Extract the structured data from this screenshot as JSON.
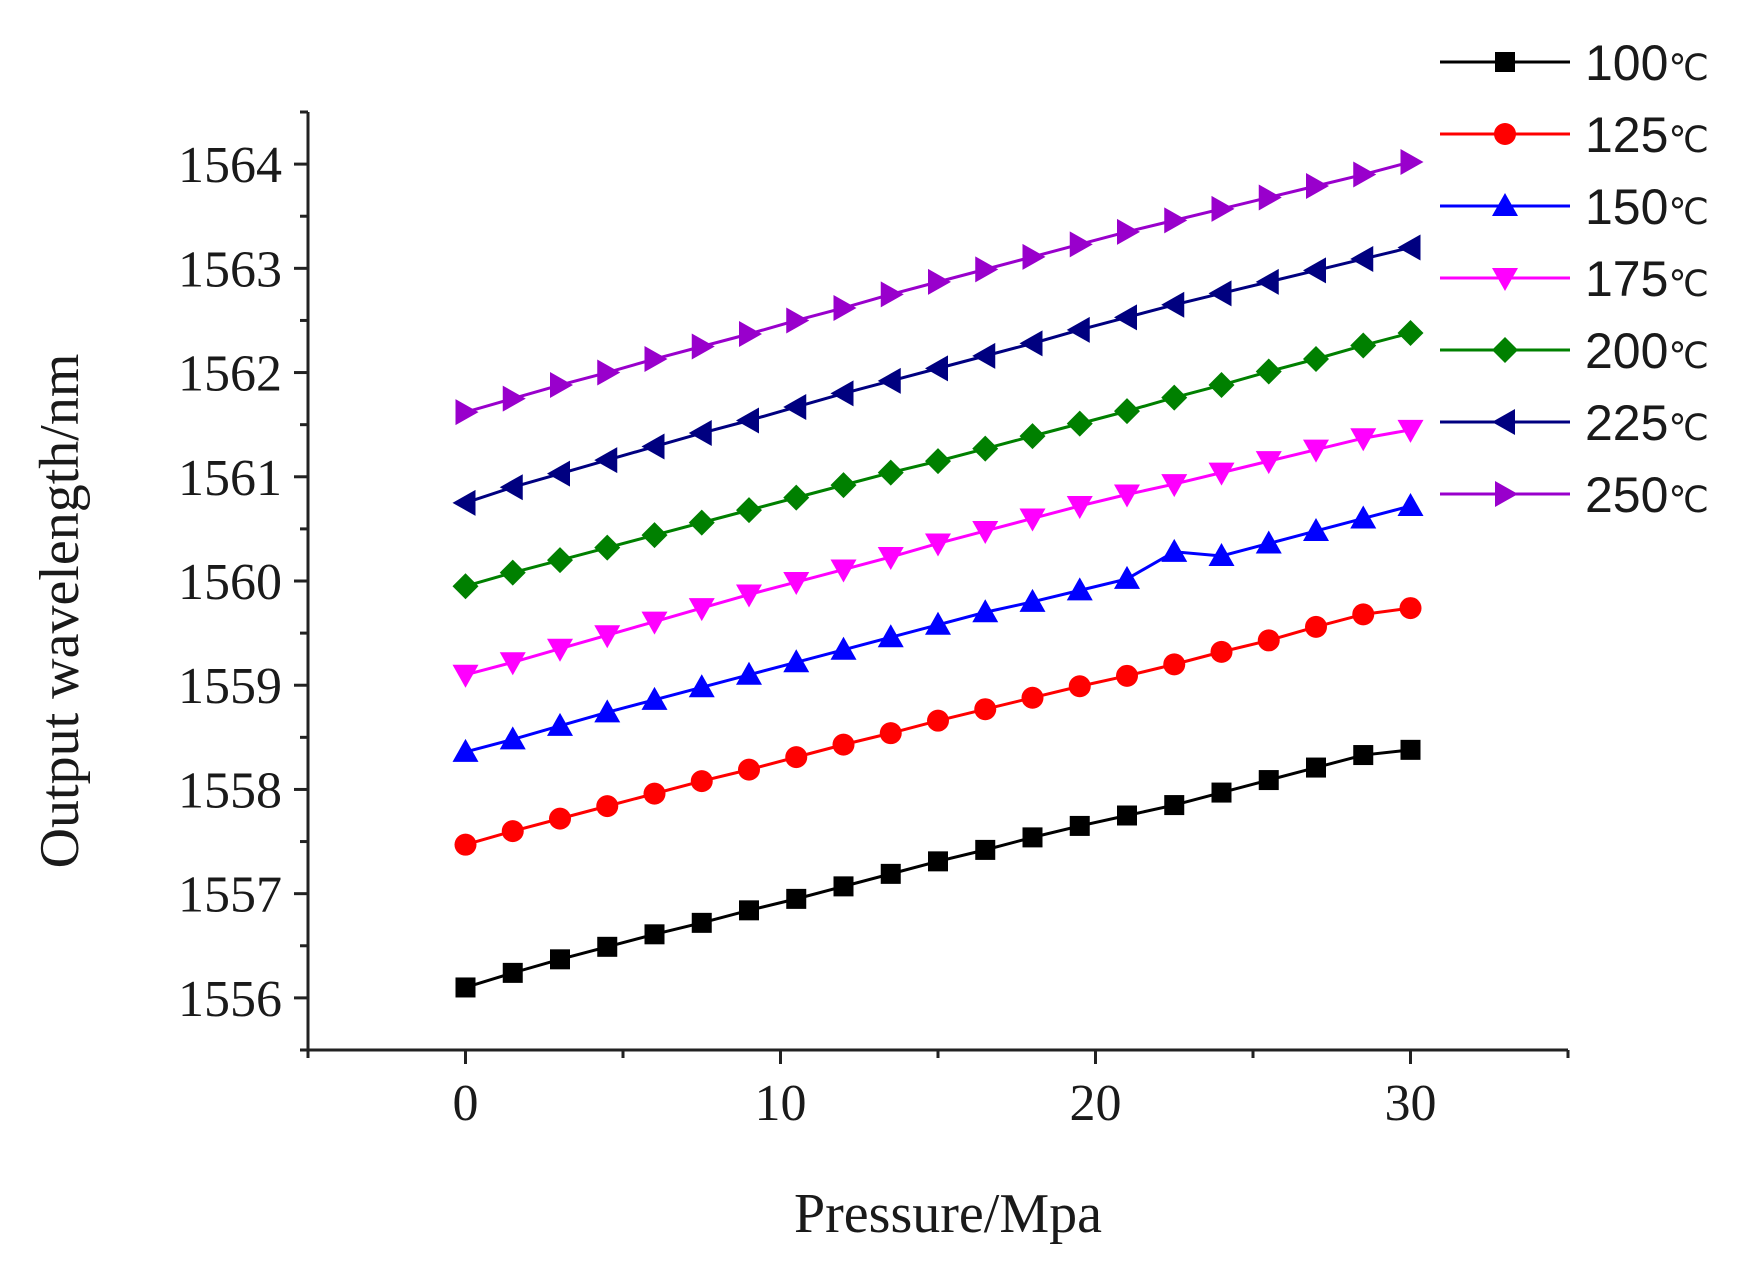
{
  "chart_data": {
    "type": "line",
    "title": "",
    "xlabel": "Pressure/Mpa",
    "ylabel": "Output wavelength/nm",
    "xlim": [
      -5,
      35
    ],
    "ylim": [
      1555.5,
      1564.5
    ],
    "xticks": [
      0,
      10,
      20,
      30
    ],
    "yticks": [
      1556,
      1557,
      1558,
      1559,
      1560,
      1561,
      1562,
      1563,
      1564
    ],
    "x": [
      0,
      1.5,
      3,
      4.5,
      6,
      7.5,
      9,
      10.5,
      12,
      13.5,
      15,
      16.5,
      18,
      19.5,
      21,
      22.5,
      24,
      25.5,
      27,
      28.5,
      30
    ],
    "legend_position": "top-right",
    "series": [
      {
        "name": "100℃",
        "label_num": "100",
        "label_unit": "℃",
        "color": "#000000",
        "marker": "square",
        "values": [
          1556.1,
          1556.24,
          1556.37,
          1556.49,
          1556.61,
          1556.72,
          1556.84,
          1556.95,
          1557.07,
          1557.19,
          1557.31,
          1557.42,
          1557.54,
          1557.65,
          1557.75,
          1557.85,
          1557.97,
          1558.09,
          1558.21,
          1558.33,
          1558.38
        ]
      },
      {
        "name": "125℃",
        "label_num": "125",
        "label_unit": "℃",
        "color": "#ff0000",
        "marker": "circle",
        "values": [
          1557.47,
          1557.6,
          1557.72,
          1557.84,
          1557.96,
          1558.08,
          1558.19,
          1558.31,
          1558.43,
          1558.54,
          1558.66,
          1558.77,
          1558.88,
          1558.99,
          1559.09,
          1559.2,
          1559.32,
          1559.43,
          1559.56,
          1559.68,
          1559.74
        ]
      },
      {
        "name": "150℃",
        "label_num": "150",
        "label_unit": "℃",
        "color": "#0000ff",
        "marker": "triangle-up",
        "values": [
          1558.36,
          1558.48,
          1558.61,
          1558.74,
          1558.86,
          1558.98,
          1559.1,
          1559.22,
          1559.34,
          1559.46,
          1559.58,
          1559.7,
          1559.8,
          1559.91,
          1560.02,
          1560.28,
          1560.24,
          1560.36,
          1560.48,
          1560.6,
          1560.72
        ]
      },
      {
        "name": "175℃",
        "label_num": "175",
        "label_unit": "℃",
        "color": "#ff00ff",
        "marker": "triangle-down",
        "values": [
          1559.1,
          1559.22,
          1559.35,
          1559.48,
          1559.61,
          1559.74,
          1559.87,
          1559.99,
          1560.11,
          1560.23,
          1560.36,
          1560.48,
          1560.6,
          1560.72,
          1560.83,
          1560.93,
          1561.04,
          1561.15,
          1561.26,
          1561.37,
          1561.45
        ]
      },
      {
        "name": "200℃",
        "label_num": "200",
        "label_unit": "℃",
        "color": "#008000",
        "marker": "diamond",
        "values": [
          1559.95,
          1560.08,
          1560.2,
          1560.32,
          1560.44,
          1560.56,
          1560.68,
          1560.8,
          1560.92,
          1561.04,
          1561.15,
          1561.27,
          1561.39,
          1561.51,
          1561.63,
          1561.76,
          1561.88,
          1562.01,
          1562.13,
          1562.26,
          1562.38
        ]
      },
      {
        "name": "225℃",
        "label_num": "225",
        "label_unit": "℃",
        "color": "#000080",
        "marker": "triangle-left",
        "values": [
          1560.75,
          1560.9,
          1561.03,
          1561.16,
          1561.29,
          1561.42,
          1561.54,
          1561.67,
          1561.8,
          1561.92,
          1562.04,
          1562.16,
          1562.28,
          1562.41,
          1562.53,
          1562.65,
          1562.76,
          1562.87,
          1562.98,
          1563.09,
          1563.2
        ]
      },
      {
        "name": "250℃",
        "label_num": "250",
        "label_unit": "℃",
        "color": "#9900cc",
        "marker": "triangle-right",
        "values": [
          1561.62,
          1561.75,
          1561.88,
          1562.0,
          1562.13,
          1562.25,
          1562.37,
          1562.5,
          1562.62,
          1562.75,
          1562.87,
          1562.99,
          1563.11,
          1563.23,
          1563.35,
          1563.46,
          1563.57,
          1563.68,
          1563.79,
          1563.9,
          1564.02
        ]
      }
    ]
  }
}
